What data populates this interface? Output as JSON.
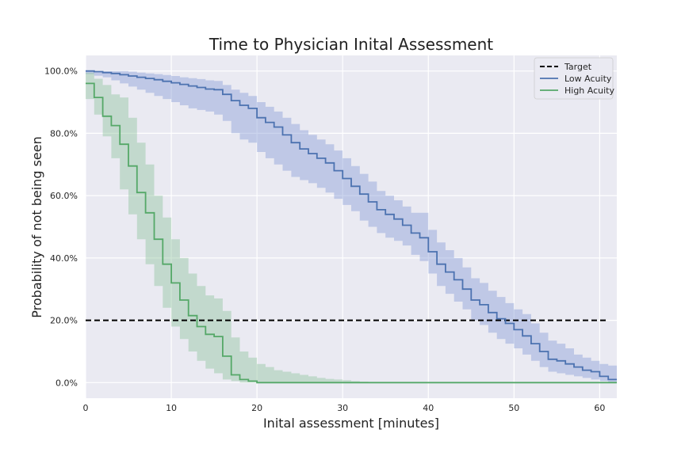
{
  "chart_data": {
    "type": "line",
    "title": "Time to Physician Inital Assessment",
    "xlabel": "Inital assessment [minutes]",
    "ylabel": "Probability of not being seen",
    "xlim": [
      0,
      62
    ],
    "ylim": [
      -0.05,
      1.05
    ],
    "xticks": [
      0,
      10,
      20,
      30,
      40,
      50,
      60
    ],
    "xtick_labels": [
      "0",
      "10",
      "20",
      "30",
      "40",
      "50",
      "60"
    ],
    "yticks": [
      0,
      0.2,
      0.4,
      0.6,
      0.8,
      1.0
    ],
    "ytick_labels": [
      "0.0%",
      "20.0%",
      "40.0%",
      "60.0%",
      "80.0%",
      "100.0%"
    ],
    "grid": true,
    "legend_position": "top-right",
    "legend": [
      "Target",
      "Low Acuity",
      "High Acuity"
    ],
    "target": {
      "name": "Target",
      "y": 0.2,
      "x": [
        0,
        61
      ],
      "color": "#000000",
      "style": "dashed"
    },
    "series": [
      {
        "name": "Low Acuity",
        "color": "#4c72b0",
        "band_color": "#8c9fd8",
        "step": true,
        "x": [
          0,
          1,
          2,
          3,
          4,
          5,
          6,
          7,
          8,
          9,
          10,
          11,
          12,
          13,
          14,
          15,
          16,
          17,
          18,
          19,
          20,
          21,
          22,
          23,
          24,
          25,
          26,
          27,
          28,
          29,
          30,
          31,
          32,
          33,
          34,
          35,
          36,
          37,
          38,
          39,
          40,
          41,
          42,
          43,
          44,
          45,
          46,
          47,
          48,
          49,
          50,
          51,
          52,
          53,
          54,
          55,
          56,
          57,
          58,
          59,
          60,
          61,
          62
        ],
        "y": [
          1.0,
          0.998,
          0.995,
          0.992,
          0.988,
          0.984,
          0.98,
          0.976,
          0.972,
          0.967,
          0.962,
          0.957,
          0.952,
          0.947,
          0.942,
          0.94,
          0.925,
          0.905,
          0.89,
          0.88,
          0.85,
          0.835,
          0.82,
          0.795,
          0.77,
          0.75,
          0.735,
          0.72,
          0.705,
          0.68,
          0.655,
          0.63,
          0.605,
          0.58,
          0.555,
          0.54,
          0.525,
          0.505,
          0.48,
          0.465,
          0.42,
          0.38,
          0.355,
          0.33,
          0.3,
          0.265,
          0.25,
          0.225,
          0.205,
          0.19,
          0.17,
          0.15,
          0.125,
          0.1,
          0.075,
          0.07,
          0.06,
          0.05,
          0.04,
          0.035,
          0.02,
          0.01,
          0.01
        ],
        "upper": [
          1.0,
          1.0,
          1.0,
          1.0,
          1.0,
          0.998,
          0.995,
          0.992,
          0.99,
          0.987,
          0.984,
          0.98,
          0.977,
          0.974,
          0.97,
          0.968,
          0.955,
          0.94,
          0.93,
          0.92,
          0.9,
          0.885,
          0.87,
          0.85,
          0.83,
          0.81,
          0.795,
          0.78,
          0.765,
          0.745,
          0.72,
          0.695,
          0.67,
          0.645,
          0.615,
          0.6,
          0.585,
          0.565,
          0.545,
          0.545,
          0.49,
          0.45,
          0.425,
          0.4,
          0.37,
          0.335,
          0.32,
          0.295,
          0.275,
          0.255,
          0.235,
          0.22,
          0.19,
          0.16,
          0.135,
          0.125,
          0.11,
          0.09,
          0.08,
          0.07,
          0.06,
          0.055,
          0.05
        ],
        "lower": [
          0.99,
          0.985,
          0.98,
          0.97,
          0.96,
          0.95,
          0.94,
          0.93,
          0.92,
          0.91,
          0.9,
          0.89,
          0.88,
          0.875,
          0.87,
          0.86,
          0.84,
          0.8,
          0.78,
          0.77,
          0.74,
          0.72,
          0.7,
          0.68,
          0.66,
          0.65,
          0.64,
          0.625,
          0.61,
          0.59,
          0.57,
          0.55,
          0.52,
          0.5,
          0.48,
          0.465,
          0.455,
          0.44,
          0.41,
          0.39,
          0.35,
          0.31,
          0.285,
          0.26,
          0.235,
          0.2,
          0.185,
          0.16,
          0.14,
          0.125,
          0.11,
          0.09,
          0.07,
          0.05,
          0.035,
          0.03,
          0.025,
          0.02,
          0.015,
          0.01,
          0.005,
          0.0,
          0.0
        ]
      },
      {
        "name": "High Acuity",
        "color": "#55a868",
        "band_color": "#92c6a0",
        "step": true,
        "x": [
          0,
          1,
          2,
          3,
          4,
          5,
          6,
          7,
          8,
          9,
          10,
          11,
          12,
          13,
          14,
          15,
          16,
          17,
          18,
          19,
          20,
          21,
          22,
          23,
          24,
          25,
          26,
          27,
          28,
          29,
          30,
          31,
          32,
          33,
          34,
          35,
          62
        ],
        "y": [
          0.96,
          0.915,
          0.855,
          0.825,
          0.765,
          0.695,
          0.61,
          0.545,
          0.46,
          0.38,
          0.32,
          0.265,
          0.215,
          0.18,
          0.155,
          0.148,
          0.085,
          0.025,
          0.01,
          0.005,
          0.0,
          0.0,
          0.0,
          0.0,
          0.0,
          0.0,
          0.0,
          0.0,
          0.0,
          0.0,
          0.0,
          0.0,
          0.0,
          0.0,
          0.0,
          0.0,
          0.0
        ],
        "upper": [
          0.995,
          0.975,
          0.955,
          0.925,
          0.915,
          0.85,
          0.77,
          0.7,
          0.6,
          0.53,
          0.46,
          0.4,
          0.35,
          0.31,
          0.28,
          0.27,
          0.23,
          0.145,
          0.1,
          0.08,
          0.06,
          0.05,
          0.04,
          0.035,
          0.03,
          0.025,
          0.02,
          0.015,
          0.012,
          0.01,
          0.008,
          0.005,
          0.003,
          0.0,
          0.0,
          0.0,
          0.0
        ],
        "lower": [
          0.91,
          0.86,
          0.79,
          0.72,
          0.62,
          0.54,
          0.46,
          0.38,
          0.31,
          0.24,
          0.18,
          0.14,
          0.1,
          0.07,
          0.045,
          0.03,
          0.01,
          0.005,
          0.0,
          0.0,
          0.0,
          0.0,
          0.0,
          0.0,
          0.0,
          0.0,
          0.0,
          0.0,
          0.0,
          0.0,
          0.0,
          0.0,
          0.0,
          0.0,
          0.0,
          0.0,
          0.0
        ]
      }
    ]
  }
}
